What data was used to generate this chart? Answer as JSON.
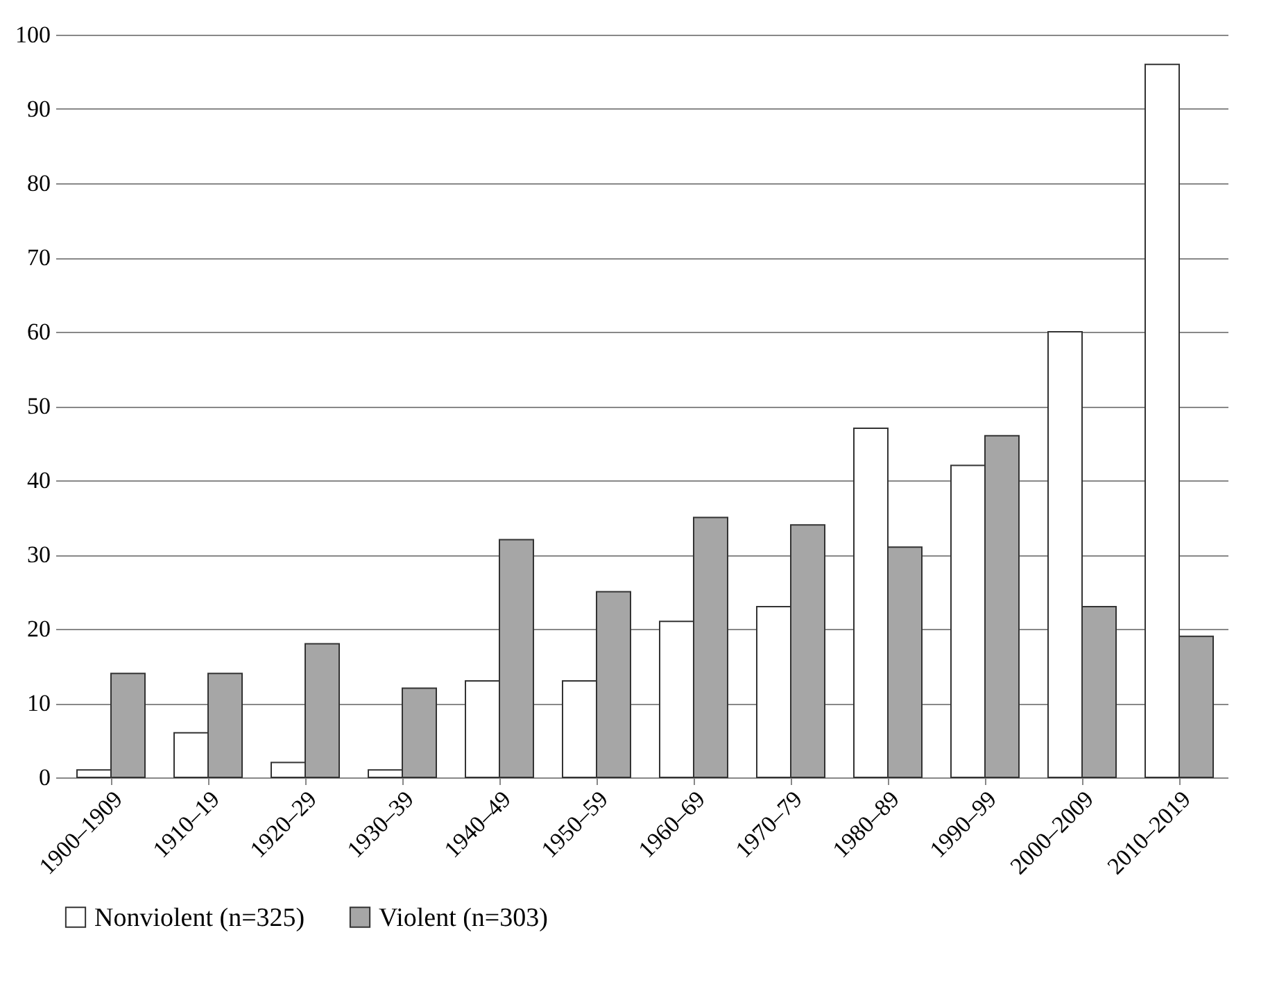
{
  "chart_data": {
    "type": "bar",
    "categories": [
      "1900–1909",
      "1910–19",
      "1920–29",
      "1930–39",
      "1940–49",
      "1950–59",
      "1960–69",
      "1970–79",
      "1980–89",
      "1990–99",
      "2000–2009",
      "2010–2019"
    ],
    "series": [
      {
        "name": "Nonviolent (n=325)",
        "color": "#ffffff",
        "values": [
          1,
          6,
          2,
          1,
          13,
          13,
          21,
          23,
          47,
          42,
          60,
          96
        ]
      },
      {
        "name": "Violent (n=303)",
        "color": "#a6a6a6",
        "values": [
          14,
          14,
          18,
          12,
          32,
          25,
          35,
          34,
          31,
          46,
          23,
          19
        ]
      }
    ],
    "ylim": [
      0,
      100
    ],
    "yticks": [
      0,
      10,
      20,
      30,
      40,
      50,
      60,
      70,
      80,
      90,
      100
    ],
    "grid": "y",
    "legend": "bottom"
  }
}
